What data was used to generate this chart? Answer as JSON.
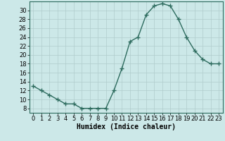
{
  "x": [
    0,
    1,
    2,
    3,
    4,
    5,
    6,
    7,
    8,
    9,
    10,
    11,
    12,
    13,
    14,
    15,
    16,
    17,
    18,
    19,
    20,
    21,
    22,
    23
  ],
  "y": [
    13,
    12,
    11,
    10,
    9,
    9,
    8,
    8,
    8,
    8,
    12,
    17,
    23,
    24,
    29,
    31,
    31.5,
    31,
    28,
    24,
    21,
    19,
    18,
    18
  ],
  "line_color": "#2d6b5e",
  "marker": "+",
  "marker_size": 4,
  "bg_color": "#cce8e8",
  "grid_color": "#b0cccc",
  "xlabel": "Humidex (Indice chaleur)",
  "xlim": [
    -0.5,
    23.5
  ],
  "ylim": [
    7,
    32
  ],
  "yticks": [
    8,
    10,
    12,
    14,
    16,
    18,
    20,
    22,
    24,
    26,
    28,
    30
  ],
  "xticks": [
    0,
    1,
    2,
    3,
    4,
    5,
    6,
    7,
    8,
    9,
    10,
    11,
    12,
    13,
    14,
    15,
    16,
    17,
    18,
    19,
    20,
    21,
    22,
    23
  ],
  "xlabel_fontsize": 7,
  "tick_fontsize": 6,
  "line_width": 1.0
}
